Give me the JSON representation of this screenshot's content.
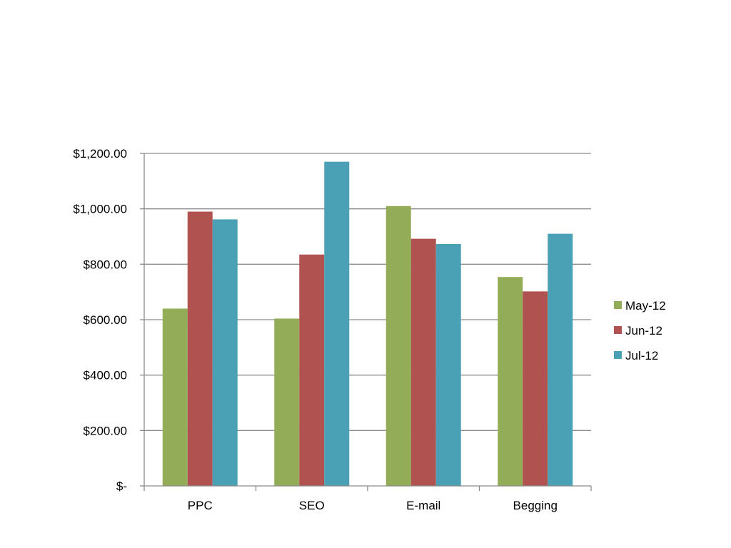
{
  "chart_data": {
    "type": "bar",
    "title": "",
    "xlabel": "",
    "ylabel": "",
    "categories": [
      "PPC",
      "SEO",
      "E-mail",
      "Begging"
    ],
    "series": [
      {
        "name": "May-12",
        "color": "#93AC58",
        "values": [
          640,
          604,
          1010,
          754
        ]
      },
      {
        "name": "Jun-12",
        "color": "#B0524F",
        "values": [
          990,
          835,
          892,
          702
        ]
      },
      {
        "name": "Jul-12",
        "color": "#4AA0B5",
        "values": [
          962,
          1170,
          873,
          910
        ]
      }
    ],
    "ylim": [
      0,
      1200
    ],
    "y_ticks": [
      0,
      200,
      400,
      600,
      800,
      1000,
      1200
    ],
    "y_tick_labels": [
      "$-",
      "$200.00",
      "$400.00",
      "$600.00",
      "$800.00",
      "$1,000.00",
      "$1,200.00"
    ],
    "grid": true,
    "legend_position": "right"
  }
}
